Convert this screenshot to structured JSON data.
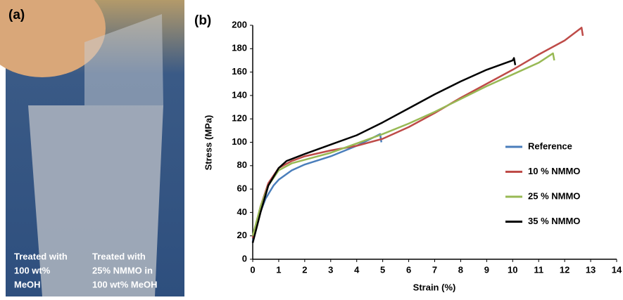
{
  "photo": {
    "label": "(a)",
    "captions": [
      [
        "Treated with",
        "100 wt%",
        "MeOH"
      ],
      [
        "Treated with",
        "25% NMMO in",
        "100 wt% MeOH"
      ]
    ]
  },
  "chart_data": {
    "type": "line",
    "panel_label": "(b)",
    "x_label": "Strain (%)",
    "y_label": "Stress (MPa)",
    "xlim": [
      0,
      14
    ],
    "xticks": [
      0,
      1,
      2,
      3,
      4,
      5,
      6,
      7,
      8,
      9,
      10,
      11,
      12,
      13,
      14
    ],
    "ylim": [
      0,
      200
    ],
    "yticks": [
      0,
      20,
      40,
      60,
      80,
      100,
      120,
      140,
      160,
      180,
      200
    ],
    "legend": "right",
    "series": [
      {
        "name": "Reference",
        "color": "#4a7ebb",
        "x": [
          0,
          0.2,
          0.5,
          0.8,
          1,
          1.5,
          2,
          3,
          4,
          4.9,
          4.95
        ],
        "values": [
          15,
          35,
          52,
          63,
          68,
          76,
          81,
          88,
          97,
          107,
          100
        ]
      },
      {
        "name": "10 % NMMO",
        "color": "#be4b48",
        "x": [
          0,
          0.3,
          0.6,
          1,
          1.5,
          2,
          3,
          4,
          5,
          6,
          7,
          8,
          9,
          10,
          11,
          12,
          12.65,
          12.7
        ],
        "values": [
          18,
          45,
          65,
          78,
          84,
          88,
          93,
          97,
          103,
          113,
          125,
          138,
          150,
          162,
          175,
          187,
          198,
          191
        ]
      },
      {
        "name": "25 % NMMO",
        "color": "#98b954",
        "x": [
          0,
          0.3,
          0.6,
          1,
          1.5,
          2,
          3,
          4,
          5,
          6,
          7,
          8,
          9,
          10,
          11,
          11.55,
          11.6
        ],
        "values": [
          20,
          45,
          63,
          76,
          82,
          85,
          91,
          99,
          107,
          116,
          126,
          137,
          148,
          158,
          168,
          176,
          170
        ]
      },
      {
        "name": "35 % NMMO",
        "color": "#000000",
        "x": [
          0,
          0.3,
          0.6,
          1,
          1.3,
          2,
          3,
          4,
          5,
          6,
          7,
          8,
          9,
          10,
          10.05,
          10.1
        ],
        "values": [
          14,
          40,
          63,
          78,
          84,
          90,
          98,
          106,
          117,
          129,
          141,
          152,
          162,
          170,
          172,
          166
        ]
      }
    ]
  }
}
